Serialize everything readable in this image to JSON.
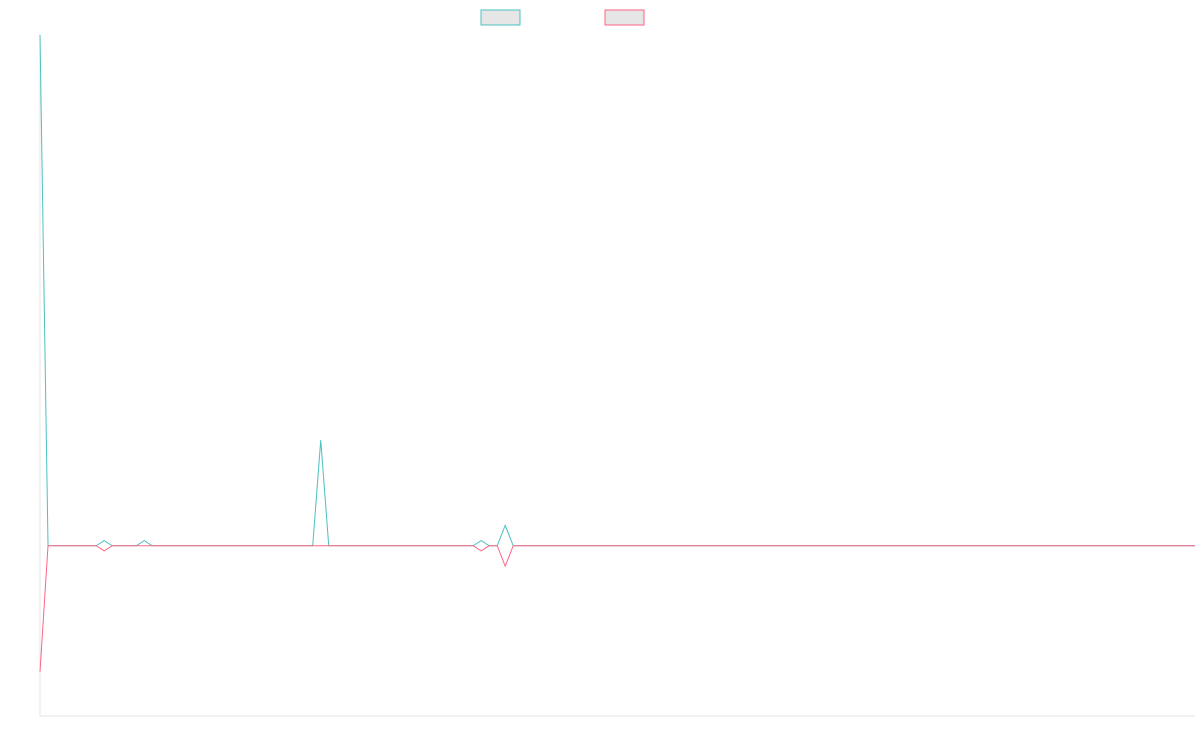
{
  "chart_data": {
    "type": "line",
    "title": "",
    "xlabel": "",
    "ylabel": "",
    "grid": false,
    "legend_position": "top-center",
    "xlim": [
      0,
      144
    ],
    "ylim": [
      -1,
      3
    ],
    "x": [
      0,
      1,
      2,
      3,
      4,
      5,
      6,
      7,
      8,
      9,
      10,
      11,
      12,
      13,
      14,
      15,
      16,
      17,
      18,
      19,
      20,
      21,
      22,
      23,
      24,
      25,
      26,
      27,
      28,
      29,
      30,
      31,
      32,
      33,
      34,
      35,
      36,
      37,
      38,
      39,
      40,
      41,
      42,
      43,
      44,
      45,
      46,
      47,
      48,
      49,
      50,
      51,
      52,
      53,
      54,
      55,
      56,
      57,
      58,
      59,
      60,
      61,
      62,
      63,
      64,
      65,
      66,
      67,
      68,
      69,
      70,
      71,
      72,
      73,
      74,
      75,
      76,
      77,
      78,
      79,
      80,
      81,
      82,
      83,
      84,
      85,
      86,
      87,
      88,
      89,
      90,
      91,
      92,
      93,
      94,
      95,
      96,
      97,
      98,
      99,
      100,
      101,
      102,
      103,
      104,
      105,
      106,
      107,
      108,
      109,
      110,
      111,
      112,
      113,
      114,
      115,
      116,
      117,
      118,
      119,
      120,
      121,
      122,
      123,
      124,
      125,
      126,
      127,
      128,
      129,
      130,
      131,
      132,
      133,
      134,
      135,
      136,
      137,
      138,
      139,
      140,
      141,
      142,
      143,
      144
    ],
    "series": [
      {
        "name": "",
        "color": "#4bc0c0",
        "values": [
          3,
          0,
          0,
          0,
          0,
          0,
          0,
          0,
          0.03,
          0,
          0,
          0,
          0,
          0.03,
          0,
          0,
          0,
          0,
          0,
          0,
          0,
          0,
          0,
          0,
          0,
          0,
          0,
          0,
          0,
          0,
          0,
          0,
          0,
          0,
          0,
          0.62,
          0,
          0,
          0,
          0,
          0,
          0,
          0,
          0,
          0,
          0,
          0,
          0,
          0,
          0,
          0,
          0,
          0,
          0,
          0,
          0.03,
          0,
          0,
          0.12,
          0,
          0,
          0,
          0,
          0,
          0,
          0,
          0,
          0,
          0,
          0,
          0,
          0,
          0,
          0,
          0,
          0,
          0,
          0,
          0,
          0,
          0,
          0,
          0,
          0,
          0,
          0,
          0,
          0,
          0,
          0,
          0,
          0,
          0,
          0,
          0,
          0,
          0,
          0,
          0,
          0,
          0,
          0,
          0,
          0,
          0,
          0,
          0,
          0,
          0,
          0,
          0,
          0,
          0,
          0,
          0,
          0,
          0,
          0,
          0,
          0,
          0,
          0,
          0,
          0,
          0,
          0,
          0,
          0,
          0,
          0,
          0,
          0,
          0,
          0,
          0,
          0,
          0,
          0,
          0,
          0,
          0,
          0,
          0,
          0,
          0
        ]
      },
      {
        "name": "",
        "color": "#ff6384",
        "values": [
          -0.74,
          0,
          0,
          0,
          0,
          0,
          0,
          0,
          -0.03,
          0,
          0,
          0,
          0,
          0,
          0,
          0,
          0,
          0,
          0,
          0,
          0,
          0,
          0,
          0,
          0,
          0,
          0,
          0,
          0,
          0,
          0,
          0,
          0,
          0,
          0,
          0,
          0,
          0,
          0,
          0,
          0,
          0,
          0,
          0,
          0,
          0,
          0,
          0,
          0,
          0,
          0,
          0,
          0,
          0,
          0,
          -0.03,
          0,
          0,
          -0.12,
          0,
          0,
          0,
          0,
          0,
          0,
          0,
          0,
          0,
          0,
          0,
          0,
          0,
          0,
          0,
          0,
          0,
          0,
          0,
          0,
          0,
          0,
          0,
          0,
          0,
          0,
          0,
          0,
          0,
          0,
          0,
          0,
          0,
          0,
          0,
          0,
          0,
          0,
          0,
          0,
          0,
          0,
          0,
          0,
          0,
          0,
          0,
          0,
          0,
          0,
          0,
          0,
          0,
          0,
          0,
          0,
          0,
          0,
          0,
          0,
          0,
          0,
          0,
          0,
          0,
          0,
          0,
          0,
          0,
          0,
          0,
          0,
          0,
          0,
          0,
          0,
          0,
          0,
          0,
          0,
          0,
          0,
          0,
          0,
          0,
          0
        ]
      }
    ]
  }
}
